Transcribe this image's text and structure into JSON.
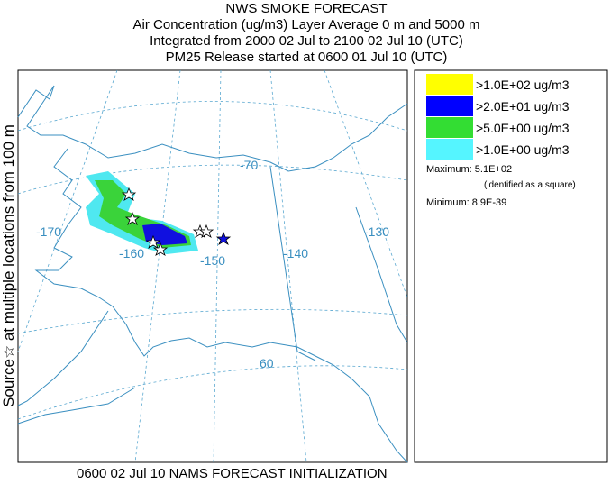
{
  "header": {
    "title": "NWS SMOKE FORECAST",
    "lines": [
      "Air Concentration (ug/m3) Layer Average    0 m and  5000 m",
      "Integrated from 2000 02 Jul to 2100 02 Jul 10 (UTC)",
      "PM25 Release started at 0600 01 Jul 10 (UTC)"
    ]
  },
  "map": {
    "side_label": "Source☆ at multiple locations  from  100 m",
    "graticule_labels": [
      "-70",
      "-170",
      "-160",
      "-150",
      "-140",
      "-130",
      "60"
    ]
  },
  "legend": {
    "items": [
      {
        "label": ">1.0E+02 ug/m3",
        "color": "#ffff00"
      },
      {
        "label": ">2.0E+01 ug/m3",
        "color": "#0000ff"
      },
      {
        "label": ">5.0E+00 ug/m3",
        "color": "#33dd33"
      },
      {
        "label": ">1.0E+00 ug/m3",
        "color": "#55f5ff"
      }
    ],
    "maximum": "Maximum: 5.1E+02",
    "maximum_note": "(identified as a square)",
    "minimum": "Minimum: 8.9E-39"
  },
  "footer": "0600 02 Jul 10 NAMS FORECAST INITIALIZATION"
}
